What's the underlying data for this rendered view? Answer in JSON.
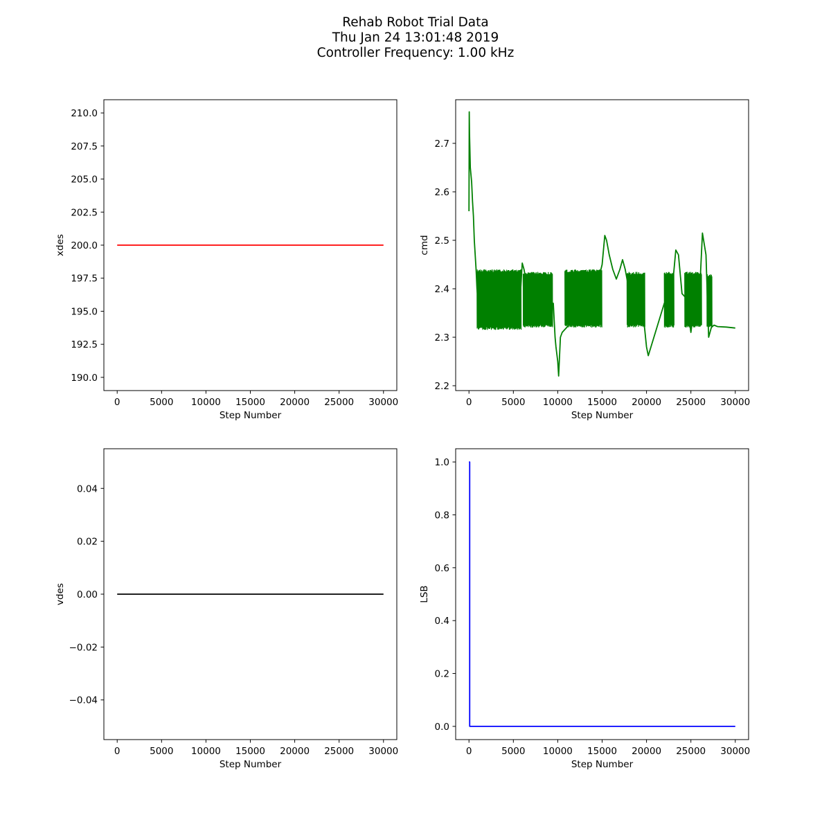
{
  "figure": {
    "title_lines": [
      "Rehab Robot Trial Data",
      "Thu Jan 24 13:01:48 2019",
      "Controller Frequency: 1.00 kHz"
    ]
  },
  "chart_data": [
    {
      "id": "xdes",
      "type": "line",
      "xlabel": "Step Number",
      "ylabel": "xdes",
      "xlim": [
        -1500,
        31500
      ],
      "ylim": [
        189.0,
        211.0
      ],
      "xticks": [
        0,
        5000,
        10000,
        15000,
        20000,
        25000,
        30000
      ],
      "yticks": [
        190.0,
        192.5,
        195.0,
        197.5,
        200.0,
        202.5,
        205.0,
        207.5,
        210.0
      ],
      "ytick_decimals": 1,
      "grid": false,
      "color": "#ff0000",
      "series": [
        {
          "x": [
            0,
            30000
          ],
          "y": [
            200.0,
            200.0
          ]
        }
      ]
    },
    {
      "id": "cmd",
      "type": "line",
      "xlabel": "Step Number",
      "ylabel": "cmd",
      "xlim": [
        -1500,
        31500
      ],
      "ylim": [
        2.19,
        2.79
      ],
      "xticks": [
        0,
        5000,
        10000,
        15000,
        20000,
        25000,
        30000
      ],
      "yticks": [
        2.2,
        2.3,
        2.4,
        2.5,
        2.6,
        2.7
      ],
      "ytick_decimals": 1,
      "grid": false,
      "color": "#008000",
      "series": [
        {
          "x": [
            0,
            30,
            60,
            100,
            150,
            200,
            300,
            400,
            500,
            600,
            700,
            800,
            900,
            1000,
            1200,
            1500,
            2000,
            3000,
            4000,
            5000,
            5800,
            6000,
            6200,
            6600,
            7000,
            8000,
            9000,
            9500,
            9700,
            9800,
            9900,
            10000,
            10100,
            10200,
            10300,
            10500,
            11000,
            11500,
            12000,
            12500,
            13000,
            14000,
            15000,
            15300,
            15500,
            15800,
            16200,
            16600,
            17000,
            17300,
            17600,
            18000,
            19000,
            19500,
            20000,
            20200,
            20500,
            21000,
            22000,
            22500,
            23000,
            23300,
            23600,
            24000,
            24500,
            25000,
            25500,
            26000,
            26300,
            26700,
            27000,
            27300,
            27600,
            28000,
            29000,
            30000
          ],
          "y": [
            2.56,
            2.765,
            2.72,
            2.69,
            2.65,
            2.64,
            2.62,
            2.58,
            2.55,
            2.5,
            2.47,
            2.44,
            2.4,
            2.38,
            2.37,
            2.365,
            2.37,
            2.372,
            2.375,
            2.37,
            2.39,
            2.453,
            2.44,
            2.4,
            2.38,
            2.375,
            2.372,
            2.37,
            2.3,
            2.28,
            2.265,
            2.25,
            2.22,
            2.26,
            2.3,
            2.31,
            2.32,
            2.33,
            2.37,
            2.39,
            2.38,
            2.375,
            2.45,
            2.51,
            2.5,
            2.47,
            2.44,
            2.42,
            2.44,
            2.46,
            2.44,
            2.4,
            2.38,
            2.37,
            2.28,
            2.262,
            2.28,
            2.31,
            2.37,
            2.38,
            2.42,
            2.48,
            2.47,
            2.39,
            2.38,
            2.31,
            2.38,
            2.4,
            2.515,
            2.47,
            2.3,
            2.32,
            2.325,
            2.322,
            2.321,
            2.319
          ]
        }
      ],
      "oscillation_bands": [
        {
          "x_start": 900,
          "x_end": 5900,
          "low": 2.315,
          "high": 2.44
        },
        {
          "x_start": 6100,
          "x_end": 9400,
          "low": 2.32,
          "high": 2.435
        },
        {
          "x_start": 10800,
          "x_end": 15000,
          "low": 2.32,
          "high": 2.44
        },
        {
          "x_start": 17800,
          "x_end": 19800,
          "low": 2.32,
          "high": 2.435
        },
        {
          "x_start": 22000,
          "x_end": 23100,
          "low": 2.32,
          "high": 2.435
        },
        {
          "x_start": 24300,
          "x_end": 26200,
          "low": 2.32,
          "high": 2.435
        },
        {
          "x_start": 26800,
          "x_end": 27400,
          "low": 2.32,
          "high": 2.43
        }
      ]
    },
    {
      "id": "vdes",
      "type": "line",
      "xlabel": "Step Number",
      "ylabel": "vdes",
      "xlim": [
        -1500,
        31500
      ],
      "ylim": [
        -0.055,
        0.055
      ],
      "xticks": [
        0,
        5000,
        10000,
        15000,
        20000,
        25000,
        30000
      ],
      "yticks": [
        -0.04,
        -0.02,
        0.0,
        0.02,
        0.04
      ],
      "ytick_decimals": 2,
      "grid": false,
      "color": "#000000",
      "series": [
        {
          "x": [
            0,
            30000
          ],
          "y": [
            0.0,
            0.0
          ]
        }
      ]
    },
    {
      "id": "LSB",
      "type": "line",
      "xlabel": "Step Number",
      "ylabel": "LSB",
      "xlim": [
        -1500,
        31500
      ],
      "ylim": [
        -0.05,
        1.05
      ],
      "xticks": [
        0,
        5000,
        10000,
        15000,
        20000,
        25000,
        30000
      ],
      "yticks": [
        0.0,
        0.2,
        0.4,
        0.6,
        0.8,
        1.0
      ],
      "ytick_decimals": 1,
      "grid": false,
      "color": "#0000ff",
      "series": [
        {
          "x": [
            0,
            80,
            80,
            30000
          ],
          "y": [
            1.0,
            1.0,
            0.0,
            0.0
          ]
        }
      ]
    }
  ]
}
